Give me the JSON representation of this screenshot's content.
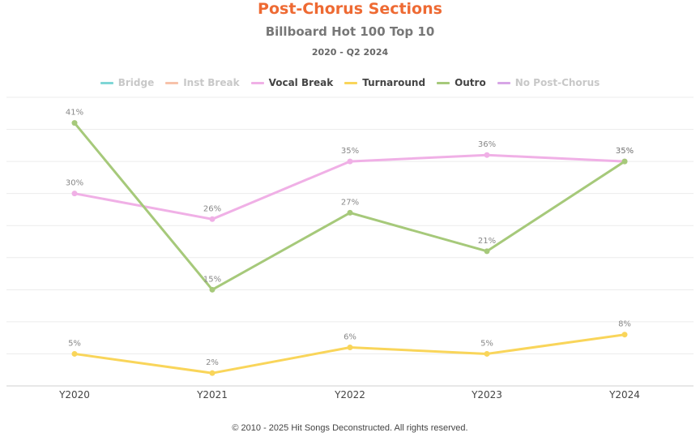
{
  "header": {
    "title": "Post-Chorus Sections",
    "subtitle": "Billboard Hot 100 Top 10",
    "date_range": "2020 - Q2 2024"
  },
  "legend": [
    {
      "label": "Bridge",
      "color": "#7fd6d6",
      "visible": false
    },
    {
      "label": "Inst Break",
      "color": "#f7c2aa",
      "visible": false
    },
    {
      "label": "Vocal Break",
      "color": "#f0b0e6",
      "visible": true
    },
    {
      "label": "Turnaround",
      "color": "#f9d55a",
      "visible": true
    },
    {
      "label": "Outro",
      "color": "#a6c97a",
      "visible": true
    },
    {
      "label": "No Post-Chorus",
      "color": "#d7a6e6",
      "visible": false
    }
  ],
  "chart_data": {
    "type": "line",
    "x": [
      "Y2020",
      "Y2021",
      "Y2022",
      "Y2023",
      "Y2024"
    ],
    "ylim": [
      0,
      45
    ],
    "grid": true,
    "legend_position": "top",
    "series": [
      {
        "name": "Vocal Break",
        "color": "#f0b0e6",
        "values": [
          30,
          26,
          35,
          36,
          35
        ],
        "labels": [
          "30%",
          "26%",
          "35%",
          "36%",
          "35%"
        ]
      },
      {
        "name": "Turnaround",
        "color": "#f9d55a",
        "values": [
          5,
          2,
          6,
          5,
          8
        ],
        "labels": [
          "5%",
          "2%",
          "6%",
          "5%",
          "8%"
        ]
      },
      {
        "name": "Outro",
        "color": "#a6c97a",
        "values": [
          41,
          15,
          27,
          21,
          35
        ],
        "labels": [
          "41%",
          "15%",
          "27%",
          "21%",
          "35%"
        ]
      }
    ]
  },
  "footer": {
    "copyright": "© 2010 - 2025 Hit Songs Deconstructed. All rights reserved."
  }
}
